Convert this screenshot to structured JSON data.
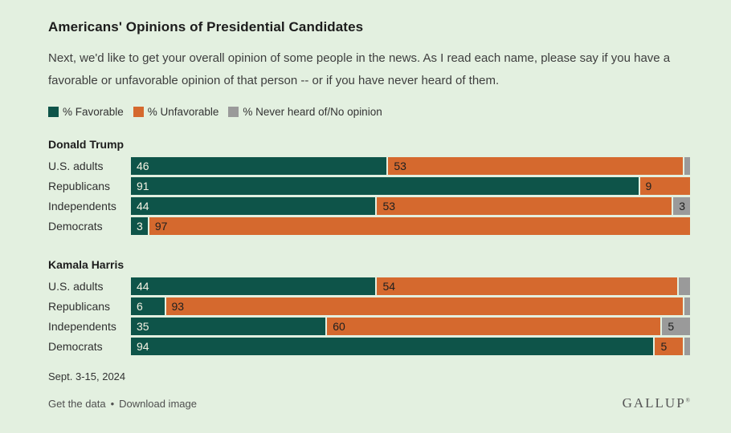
{
  "header": {
    "title": "Americans' Opinions of Presidential Candidates",
    "subtitle": "Next, we'd like to get your overall opinion of some people in the news. As I read each name, please say if you have a favorable or unfavorable opinion of that person -- or if you have never heard of them."
  },
  "colors": {
    "background": "#e3f0e0",
    "favorable": "#0e5449",
    "unfavorable": "#d5692e",
    "never": "#9a9a9a",
    "value_label_on_favorable": "#f5f2e3",
    "value_label_default": "#202020"
  },
  "legend": [
    {
      "label": "% Favorable",
      "color_key": "favorable"
    },
    {
      "label": "% Unfavorable",
      "color_key": "unfavorable"
    },
    {
      "label": "% Never heard of/No opinion",
      "color_key": "never"
    }
  ],
  "chart_data": {
    "type": "bar",
    "orientation": "horizontal",
    "stacked": true,
    "xlim": [
      0,
      100
    ],
    "label_min_value": 3,
    "series_names": [
      "% Favorable",
      "% Unfavorable",
      "% Never heard of/No opinion"
    ],
    "groups": [
      {
        "name": "Donald Trump",
        "rows": [
          {
            "category": "U.S. adults",
            "favorable": 46,
            "unfavorable": 53,
            "never": 1
          },
          {
            "category": "Republicans",
            "favorable": 91,
            "unfavorable": 9,
            "never": 0
          },
          {
            "category": "Independents",
            "favorable": 44,
            "unfavorable": 53,
            "never": 3
          },
          {
            "category": "Democrats",
            "favorable": 3,
            "unfavorable": 97,
            "never": 0
          }
        ]
      },
      {
        "name": "Kamala Harris",
        "rows": [
          {
            "category": "U.S. adults",
            "favorable": 44,
            "unfavorable": 54,
            "never": 2
          },
          {
            "category": "Republicans",
            "favorable": 6,
            "unfavorable": 93,
            "never": 1
          },
          {
            "category": "Independents",
            "favorable": 35,
            "unfavorable": 60,
            "never": 5
          },
          {
            "category": "Democrats",
            "favorable": 94,
            "unfavorable": 5,
            "never": 1
          }
        ]
      }
    ]
  },
  "footer": {
    "date": "Sept. 3-15, 2024",
    "links": [
      "Get the data",
      "Download image"
    ],
    "separator": "•",
    "brand": "GALLUP",
    "brand_mark": "®"
  }
}
